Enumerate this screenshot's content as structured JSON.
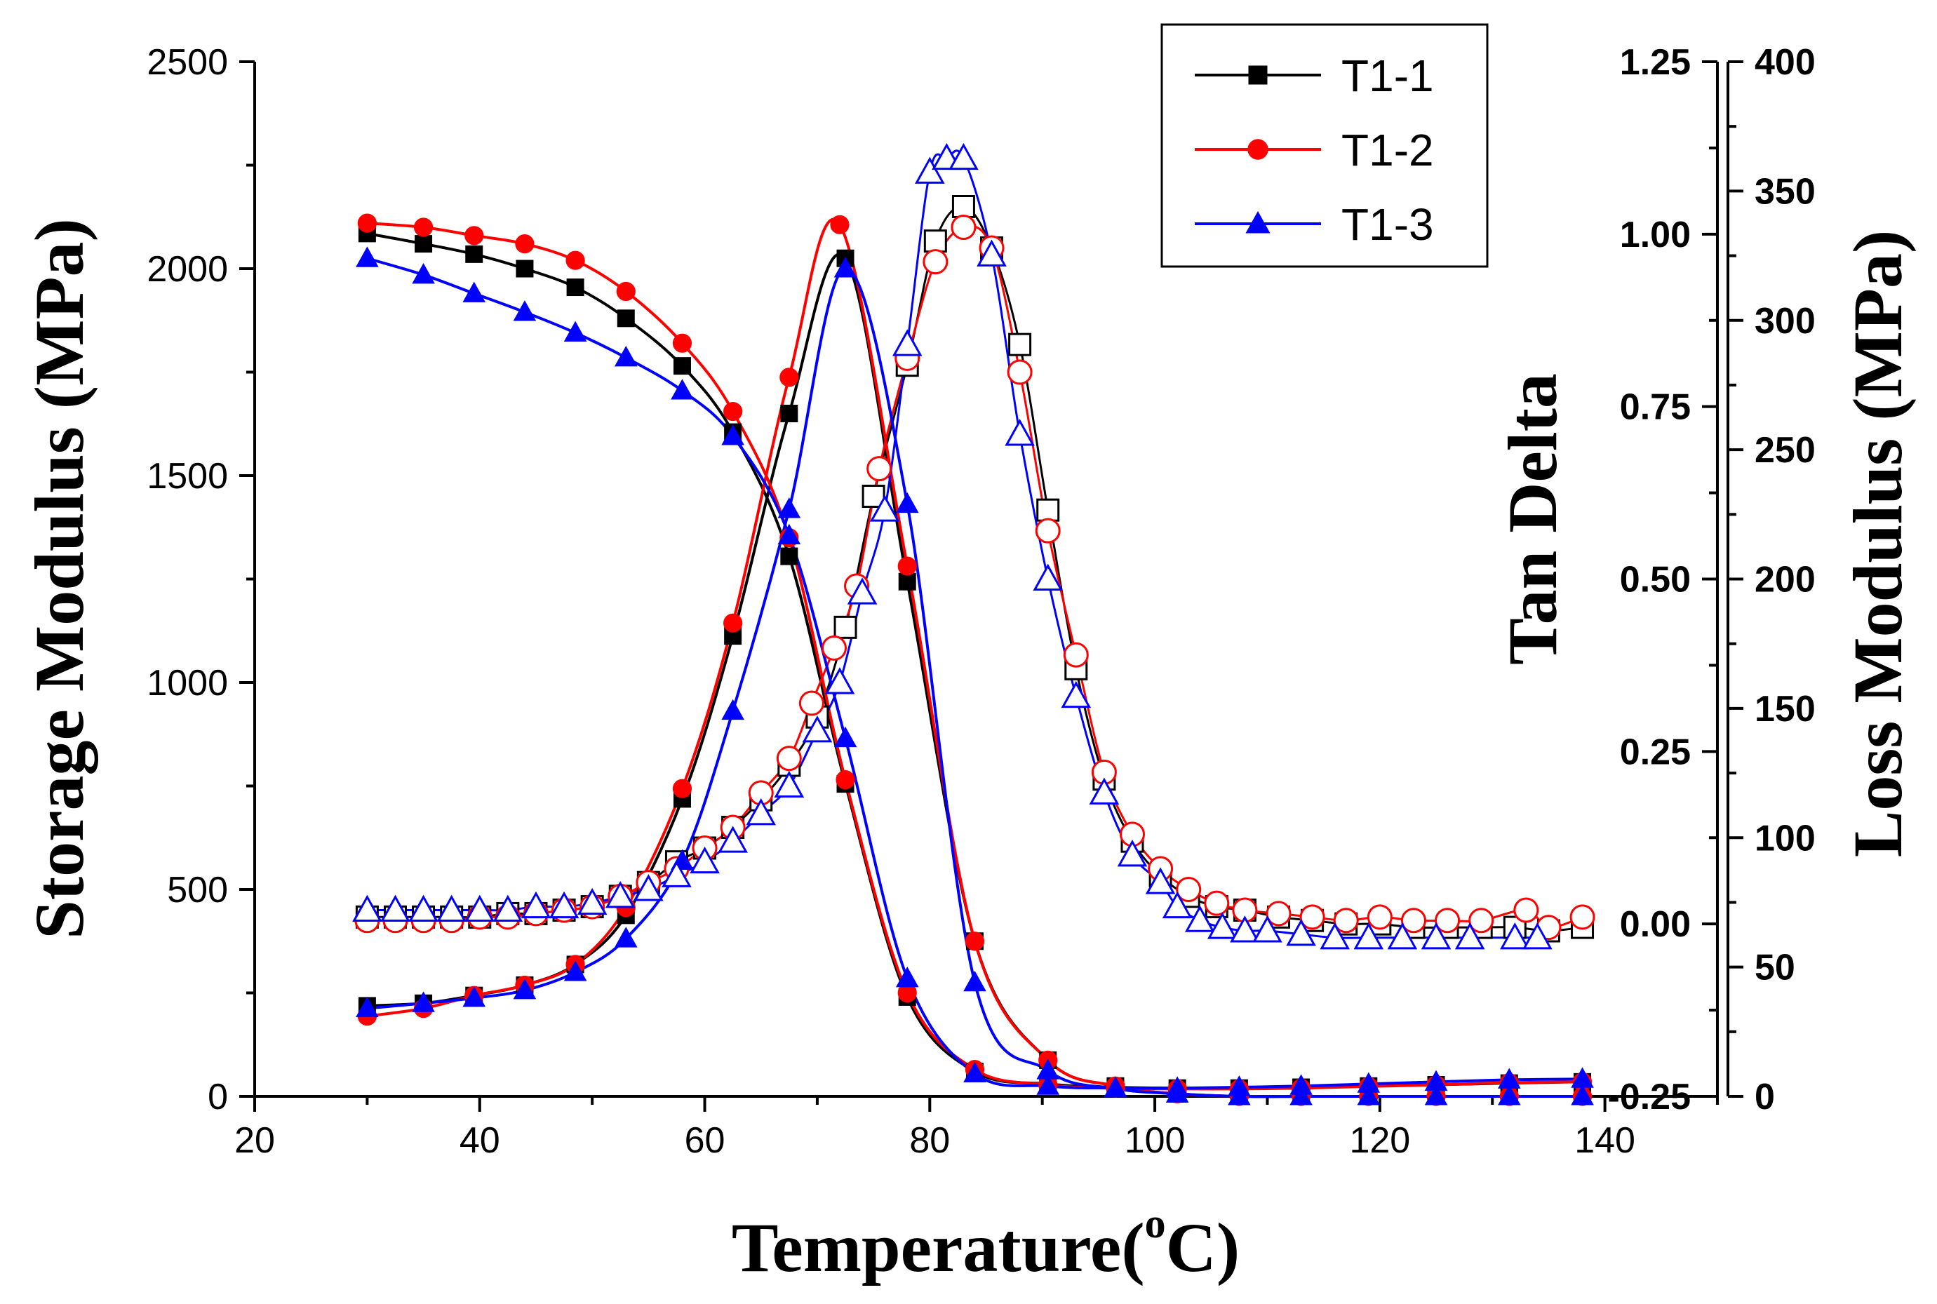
{
  "chart_data": {
    "type": "line",
    "xlabel": "Temperature(",
    "xlabel_sup": "o",
    "xlabel_end": "C)",
    "ylabel_left": "Storage Modulus (MPa)",
    "ylabel_right_inner": "Tan Delta",
    "ylabel_right_outer": "Loss Modulus (MPa)",
    "xlim": [
      20,
      150
    ],
    "xticks": [
      "20",
      "40",
      "60",
      "80",
      "100",
      "120",
      "140"
    ],
    "ylim_storage": [
      0,
      2500
    ],
    "yticks_storage": [
      "0",
      "500",
      "1000",
      "1500",
      "2000",
      "2500"
    ],
    "ylim_tan": [
      -0.25,
      1.25
    ],
    "yticks_tan": [
      "-0.25",
      "0.00",
      "0.25",
      "0.50",
      "0.75",
      "1.00",
      "1.25"
    ],
    "ylim_loss": [
      0,
      400
    ],
    "yticks_loss": [
      "0",
      "50",
      "100",
      "150",
      "200",
      "250",
      "300",
      "350",
      "400"
    ],
    "legend_position": "top-right",
    "series": [
      {
        "name": "T1-1",
        "color": "#000000",
        "marker": "square",
        "storage": [
          [
            30,
            2085
          ],
          [
            35,
            2060
          ],
          [
            39.5,
            2035
          ],
          [
            44,
            2000
          ],
          [
            48.5,
            1955
          ],
          [
            53,
            1880
          ],
          [
            58,
            1765
          ],
          [
            62.5,
            1605
          ],
          [
            67.5,
            1305
          ],
          [
            72.5,
            755
          ],
          [
            78,
            240
          ],
          [
            84,
            60
          ],
          [
            90.5,
            30
          ],
          [
            96.5,
            22
          ],
          [
            102,
            20
          ],
          [
            107.5,
            20
          ],
          [
            113,
            22
          ],
          [
            119,
            25
          ],
          [
            125,
            28
          ],
          [
            131.5,
            32
          ],
          [
            138,
            35
          ]
        ],
        "loss": [
          [
            30,
            35
          ],
          [
            35,
            36
          ],
          [
            39.5,
            39
          ],
          [
            44,
            43
          ],
          [
            48.5,
            51
          ],
          [
            53,
            70
          ],
          [
            58,
            115
          ],
          [
            62.5,
            178
          ],
          [
            67.5,
            264
          ],
          [
            72.5,
            324
          ],
          [
            78,
            199
          ],
          [
            84,
            60
          ],
          [
            90.5,
            14
          ],
          [
            96.5,
            4
          ],
          [
            102,
            1
          ],
          [
            107.5,
            0
          ],
          [
            113,
            0
          ],
          [
            119,
            0
          ],
          [
            125,
            0
          ],
          [
            131.5,
            0
          ],
          [
            138,
            0
          ]
        ],
        "tan": [
          [
            30,
            0.01
          ],
          [
            32.5,
            0.01
          ],
          [
            35,
            0.01
          ],
          [
            37.5,
            0.01
          ],
          [
            40,
            0.01
          ],
          [
            42.5,
            0.015
          ],
          [
            45,
            0.015
          ],
          [
            47.5,
            0.02
          ],
          [
            50,
            0.025
          ],
          [
            52.5,
            0.04
          ],
          [
            55,
            0.06
          ],
          [
            57.5,
            0.09
          ],
          [
            60,
            0.11
          ],
          [
            62.5,
            0.14
          ],
          [
            65,
            0.18
          ],
          [
            67.5,
            0.23
          ],
          [
            70,
            0.3
          ],
          [
            72.5,
            0.43
          ],
          [
            75,
            0.62
          ],
          [
            78,
            0.81
          ],
          [
            80.5,
            0.99
          ],
          [
            83,
            1.04
          ],
          [
            85.5,
            0.98
          ],
          [
            88,
            0.84
          ],
          [
            90.5,
            0.6
          ],
          [
            93,
            0.37
          ],
          [
            95.5,
            0.21
          ],
          [
            98,
            0.12
          ],
          [
            100.5,
            0.07
          ],
          [
            103,
            0.04
          ],
          [
            105.5,
            0.025
          ],
          [
            108,
            0.02
          ],
          [
            111,
            0.01
          ],
          [
            114,
            0.005
          ],
          [
            117,
            0
          ],
          [
            120,
            0
          ],
          [
            123,
            -0.005
          ],
          [
            126,
            -0.005
          ],
          [
            129,
            -0.005
          ],
          [
            132,
            -0.005
          ],
          [
            135,
            -0.01
          ],
          [
            138,
            -0.005
          ]
        ]
      },
      {
        "name": "T1-2",
        "color": "#ff0000",
        "marker": "circle",
        "storage": [
          [
            30,
            2110
          ],
          [
            35,
            2100
          ],
          [
            39.5,
            2080
          ],
          [
            44,
            2060
          ],
          [
            48.5,
            2020
          ],
          [
            53,
            1945
          ],
          [
            58,
            1820
          ],
          [
            62.5,
            1655
          ],
          [
            67.5,
            1350
          ],
          [
            72.5,
            765
          ],
          [
            78,
            250
          ],
          [
            84,
            65
          ],
          [
            90.5,
            28
          ],
          [
            96.5,
            20
          ],
          [
            102,
            18
          ],
          [
            107.5,
            18
          ],
          [
            113,
            20
          ],
          [
            119,
            24
          ],
          [
            125,
            28
          ],
          [
            131.5,
            33
          ],
          [
            138,
            35
          ]
        ],
        "loss": [
          [
            30,
            31
          ],
          [
            35,
            34
          ],
          [
            39.5,
            39
          ],
          [
            44,
            43
          ],
          [
            48.5,
            51
          ],
          [
            53,
            73
          ],
          [
            58,
            119
          ],
          [
            62.5,
            183
          ],
          [
            67.5,
            278
          ],
          [
            72,
            337
          ],
          [
            78,
            205
          ],
          [
            84,
            60
          ],
          [
            90.5,
            14
          ],
          [
            96.5,
            4
          ],
          [
            102,
            1
          ],
          [
            107.5,
            0
          ],
          [
            113,
            0
          ],
          [
            119,
            0
          ],
          [
            125,
            0
          ],
          [
            131.5,
            0
          ],
          [
            138,
            0
          ]
        ],
        "tan": [
          [
            30,
            0.005
          ],
          [
            32.5,
            0.005
          ],
          [
            35,
            0.005
          ],
          [
            37.5,
            0.005
          ],
          [
            40,
            0.01
          ],
          [
            42.5,
            0.01
          ],
          [
            45,
            0.015
          ],
          [
            47.5,
            0.02
          ],
          [
            50,
            0.025
          ],
          [
            52.5,
            0.04
          ],
          [
            55,
            0.06
          ],
          [
            57.5,
            0.08
          ],
          [
            60,
            0.11
          ],
          [
            62.5,
            0.14
          ],
          [
            65,
            0.19
          ],
          [
            67.5,
            0.24
          ],
          [
            69.5,
            0.32
          ],
          [
            71.5,
            0.4
          ],
          [
            73.5,
            0.49
          ],
          [
            75.5,
            0.66
          ],
          [
            78,
            0.82
          ],
          [
            80.5,
            0.96
          ],
          [
            83,
            1.01
          ],
          [
            85.5,
            0.98
          ],
          [
            88,
            0.8
          ],
          [
            90.5,
            0.57
          ],
          [
            93,
            0.39
          ],
          [
            95.5,
            0.22
          ],
          [
            98,
            0.13
          ],
          [
            100.5,
            0.08
          ],
          [
            103,
            0.05
          ],
          [
            105.5,
            0.03
          ],
          [
            108,
            0.02
          ],
          [
            111,
            0.015
          ],
          [
            114,
            0.01
          ],
          [
            117,
            0.005
          ],
          [
            120,
            0.01
          ],
          [
            123,
            0.005
          ],
          [
            126,
            0.005
          ],
          [
            129,
            0.005
          ],
          [
            133,
            0.02
          ],
          [
            135,
            -0.005
          ],
          [
            138,
            0.01
          ]
        ]
      },
      {
        "name": "T1-3",
        "color": "#0000ff",
        "marker": "triangle",
        "storage": [
          [
            30,
            2025
          ],
          [
            35,
            1985
          ],
          [
            39.5,
            1940
          ],
          [
            44,
            1895
          ],
          [
            48.5,
            1845
          ],
          [
            53,
            1785
          ],
          [
            58,
            1705
          ],
          [
            62.5,
            1595
          ],
          [
            67.5,
            1355
          ],
          [
            72.5,
            865
          ],
          [
            78,
            285
          ],
          [
            84,
            55
          ],
          [
            90.5,
            25
          ],
          [
            96.5,
            20
          ],
          [
            102,
            20
          ],
          [
            107.5,
            22
          ],
          [
            113,
            25
          ],
          [
            119,
            30
          ],
          [
            125,
            35
          ],
          [
            131.5,
            40
          ],
          [
            138,
            42
          ]
        ],
        "loss": [
          [
            30,
            34
          ],
          [
            35,
            36
          ],
          [
            39.5,
            38
          ],
          [
            44,
            41
          ],
          [
            48.5,
            48
          ],
          [
            53,
            61
          ],
          [
            58,
            91
          ],
          [
            62.5,
            149
          ],
          [
            67.5,
            227
          ],
          [
            72.5,
            320
          ],
          [
            78,
            229
          ],
          [
            84,
            44
          ],
          [
            90.5,
            10
          ],
          [
            96.5,
            3
          ],
          [
            102,
            1
          ],
          [
            107.5,
            0
          ],
          [
            113,
            0
          ],
          [
            119,
            0
          ],
          [
            125,
            0
          ],
          [
            131.5,
            0
          ],
          [
            138,
            0
          ]
        ],
        "tan": [
          [
            30,
            0.02
          ],
          [
            32.5,
            0.02
          ],
          [
            35,
            0.02
          ],
          [
            37.5,
            0.02
          ],
          [
            40,
            0.02
          ],
          [
            42.5,
            0.02
          ],
          [
            45,
            0.025
          ],
          [
            47.5,
            0.025
          ],
          [
            50,
            0.03
          ],
          [
            52.5,
            0.04
          ],
          [
            55,
            0.05
          ],
          [
            57.5,
            0.07
          ],
          [
            60,
            0.09
          ],
          [
            62.5,
            0.12
          ],
          [
            65,
            0.16
          ],
          [
            67.5,
            0.2
          ],
          [
            70,
            0.28
          ],
          [
            72,
            0.35
          ],
          [
            74,
            0.48
          ],
          [
            76,
            0.6
          ],
          [
            78,
            0.84
          ],
          [
            80,
            1.09
          ],
          [
            81.5,
            1.11
          ],
          [
            83,
            1.11
          ],
          [
            85.5,
            0.97
          ],
          [
            88,
            0.71
          ],
          [
            90.5,
            0.5
          ],
          [
            93,
            0.33
          ],
          [
            95.5,
            0.19
          ],
          [
            98,
            0.1
          ],
          [
            100.5,
            0.06
          ],
          [
            102,
            0.025
          ],
          [
            104,
            0.005
          ],
          [
            106,
            -0.005
          ],
          [
            108,
            -0.01
          ],
          [
            110,
            -0.01
          ],
          [
            113,
            -0.015
          ],
          [
            116,
            -0.02
          ],
          [
            119,
            -0.02
          ],
          [
            122,
            -0.02
          ],
          [
            125,
            -0.02
          ],
          [
            128,
            -0.02
          ],
          [
            132,
            -0.02
          ],
          [
            134,
            -0.02
          ]
        ]
      }
    ]
  }
}
